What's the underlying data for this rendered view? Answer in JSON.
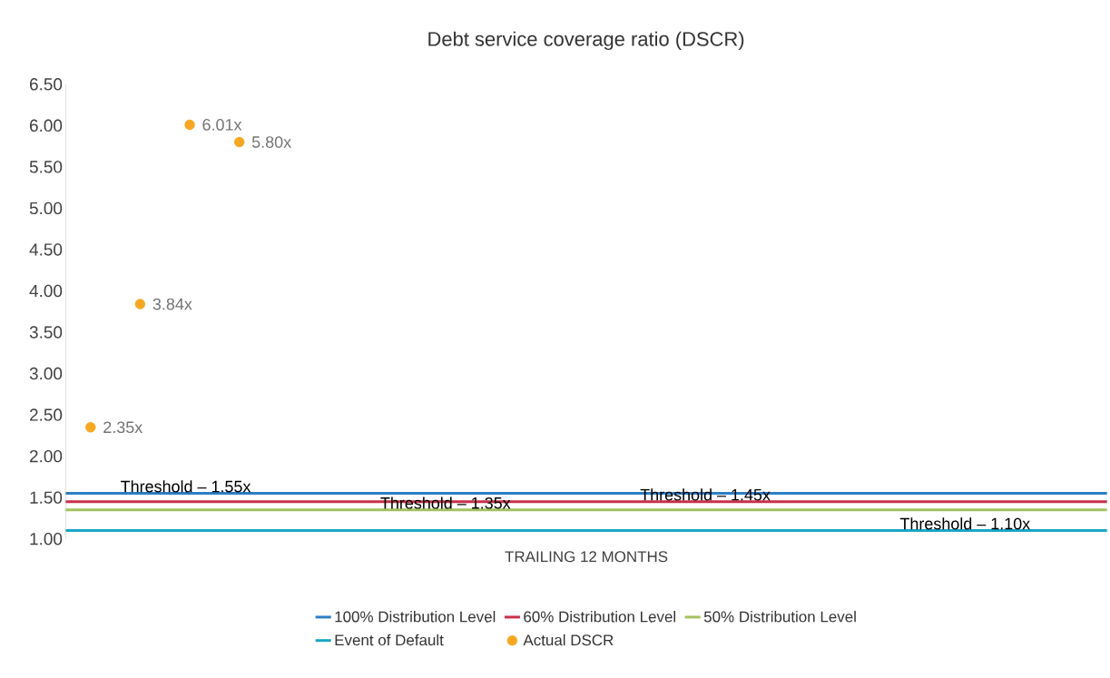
{
  "chart_data": {
    "type": "scatter",
    "title": "Debt service coverage ratio (DSCR)",
    "xlabel": "TRAILING 12 MONTHS",
    "categories": [
      null,
      null,
      null,
      null,
      null,
      null,
      null,
      null,
      null,
      null,
      null,
      null,
      null,
      null,
      null,
      null,
      null,
      null,
      null,
      null,
      null
    ],
    "series": [
      {
        "name": "Actual DSCR",
        "color": "#f7a823",
        "values": [
          2.35,
          3.84,
          6.01,
          5.8,
          null,
          null,
          null,
          null,
          null,
          null,
          null,
          null,
          null,
          null,
          null,
          null,
          null,
          null,
          null,
          null,
          null
        ],
        "value_labels": [
          "2.35x",
          "3.84x",
          "6.01x",
          "5.80x",
          null,
          null,
          null,
          null,
          null,
          null,
          null,
          null,
          null,
          null,
          null,
          null,
          null,
          null,
          null,
          null,
          null
        ]
      }
    ],
    "ref_lines": [
      {
        "axis": "y",
        "value": 1.55,
        "label": "100% Distribution Level",
        "color": "#2b7fc4"
      },
      {
        "axis": "y",
        "value": 1.45,
        "label": "60% Distribution Level",
        "color": "#c8304a"
      },
      {
        "axis": "y",
        "value": 1.35,
        "label": "50% Distribution Level",
        "color": "#a3c15f"
      },
      {
        "axis": "y",
        "value": 1.1,
        "label": "Event of Default",
        "color": "#1aa6c6"
      }
    ],
    "ylim": [
      1,
      6.5
    ],
    "yticks": [
      {
        "value": 1,
        "label": "1.00"
      },
      {
        "value": 1.5,
        "label": "1.50"
      },
      {
        "value": 2,
        "label": "2.00"
      },
      {
        "value": 2.5,
        "label": "2.50"
      },
      {
        "value": 3,
        "label": "3.00"
      },
      {
        "value": 3.5,
        "label": "3.50"
      },
      {
        "value": 4,
        "label": "4.00"
      },
      {
        "value": 4.5,
        "label": "4.50"
      },
      {
        "value": 5,
        "label": "5.00"
      },
      {
        "value": 5.5,
        "label": "5.50"
      },
      {
        "value": 6,
        "label": "6.00"
      },
      {
        "value": 6.5,
        "label": "6.50"
      }
    ],
    "annotations": [
      {
        "text": "Threshold – 1.55x",
        "y": 1.55
      },
      {
        "text": "Threshold – 1.35x",
        "y": 1.35
      },
      {
        "text": "Threshold – 1.45x",
        "y": 1.45
      },
      {
        "text": "Threshold – 1.10x",
        "y": 1.1
      }
    ],
    "legend": "bottom",
    "tick_labels": "y"
  }
}
